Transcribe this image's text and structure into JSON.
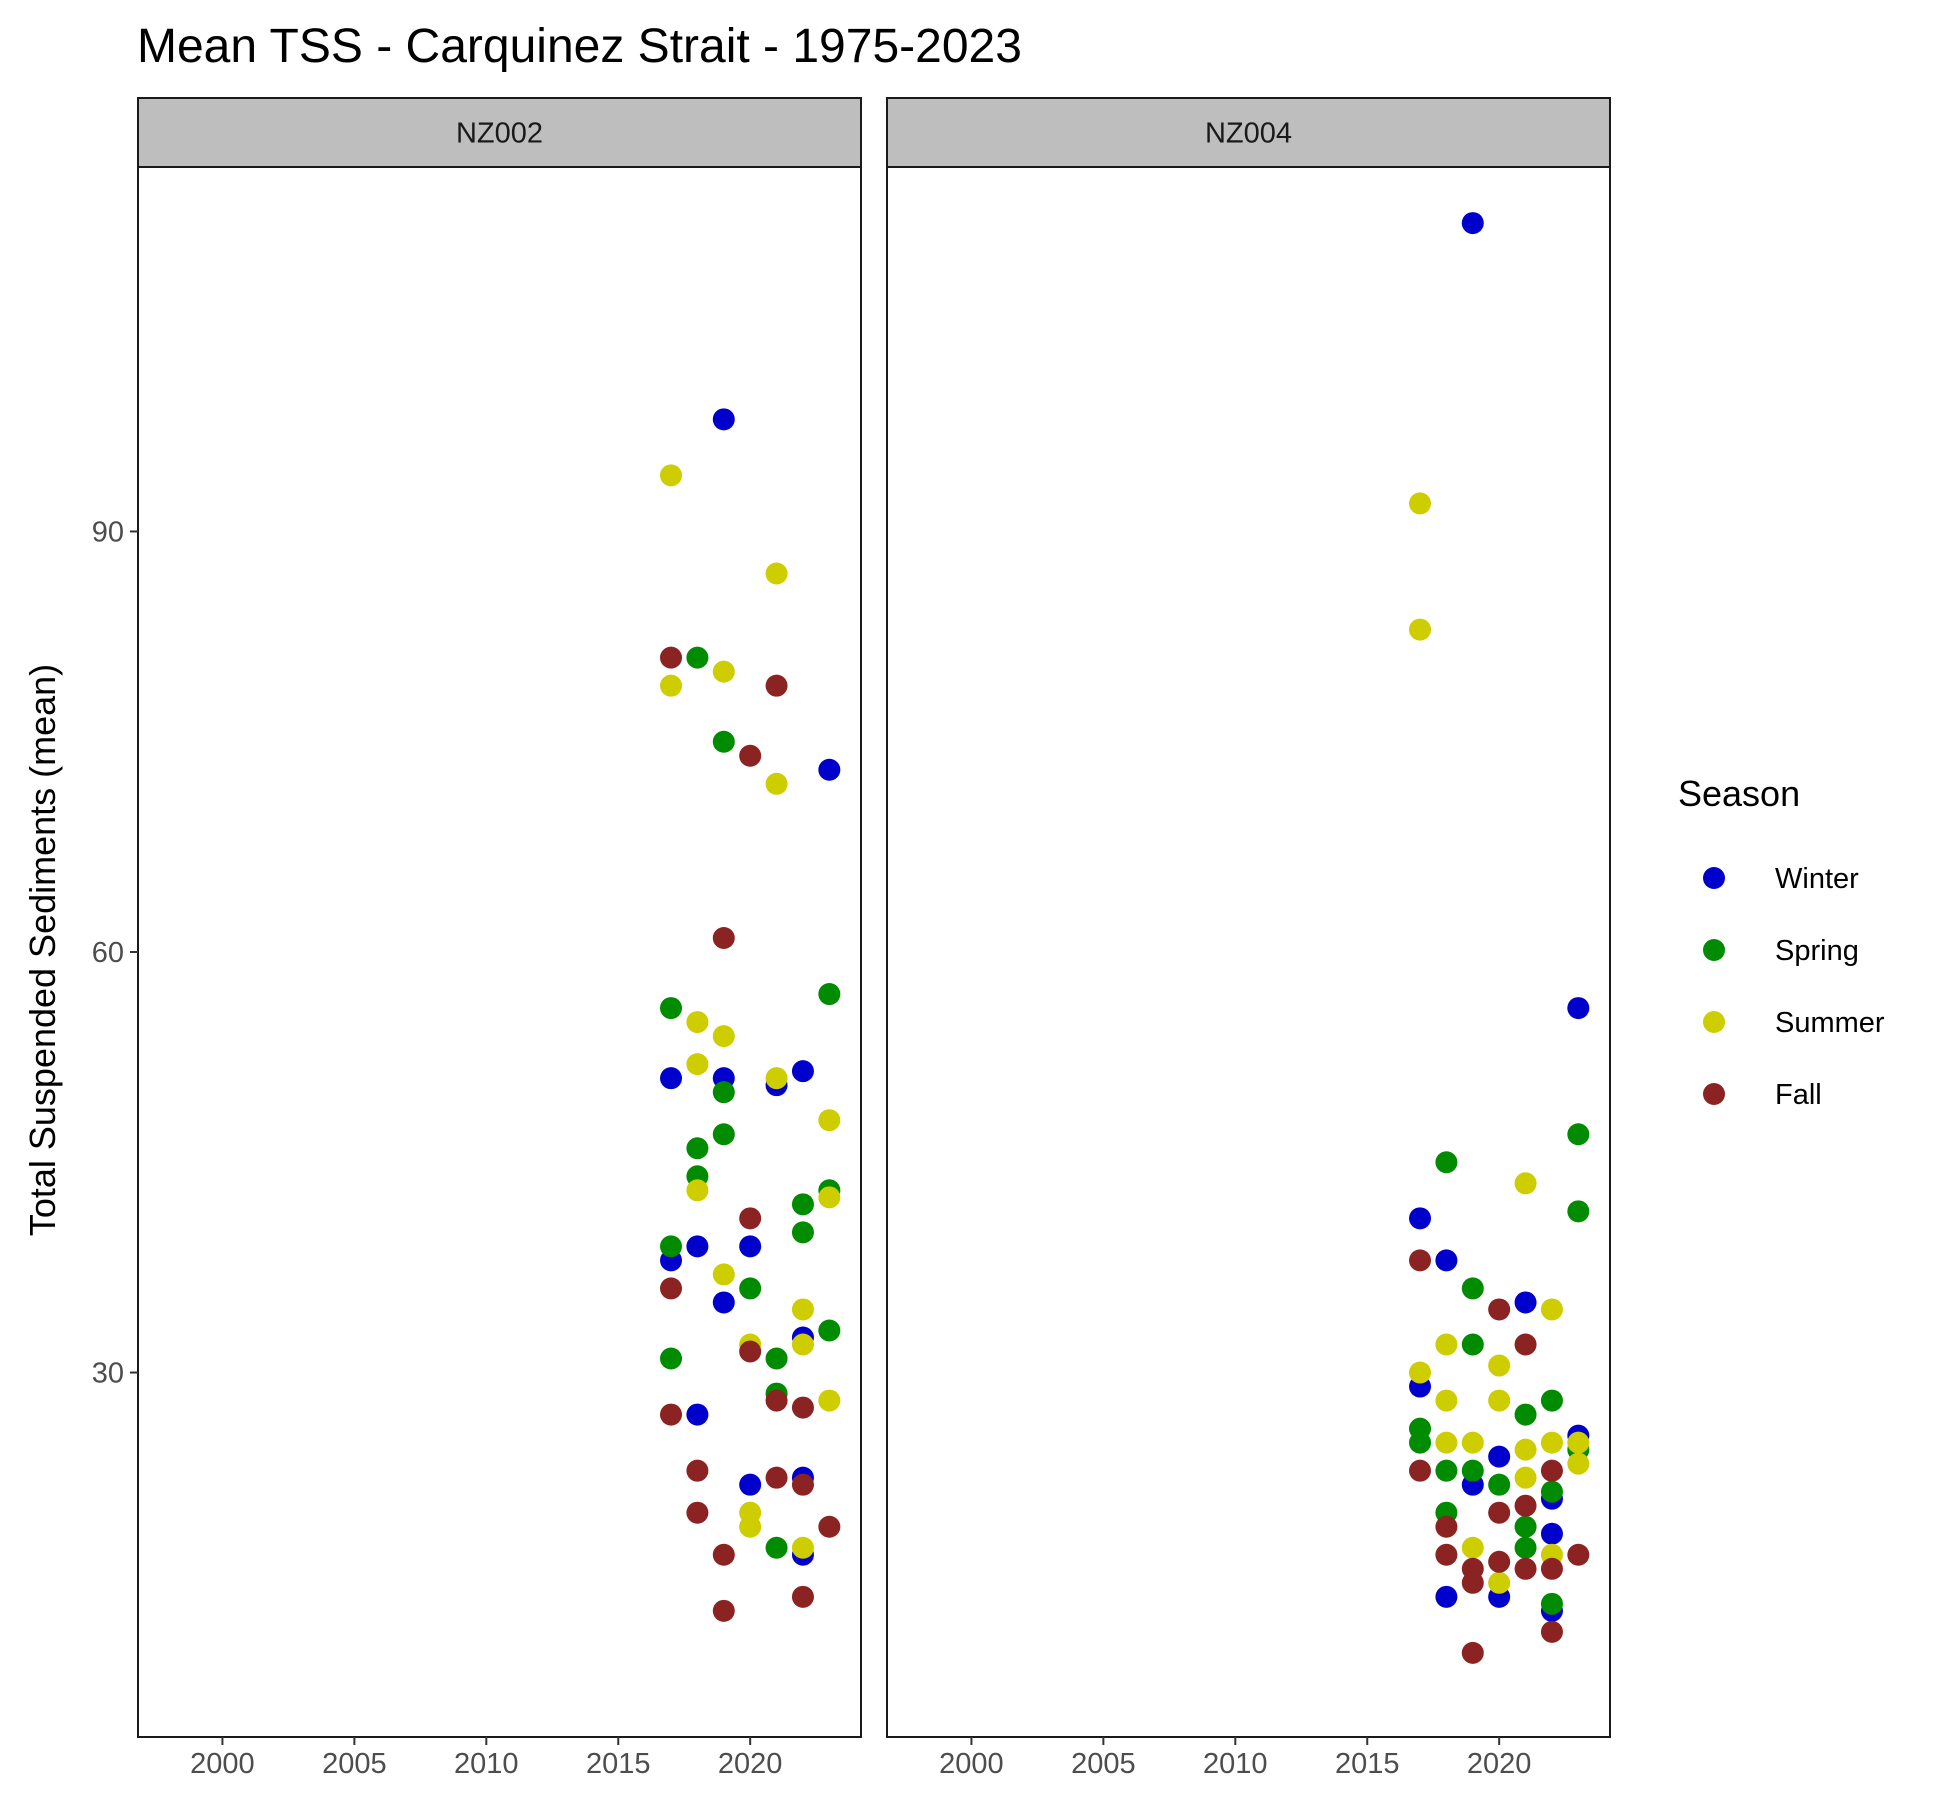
{
  "chart_data": {
    "type": "scatter",
    "title": "Mean TSS - Carquinez Strait - 1975-2023",
    "xlabel": "",
    "ylabel": "Total Suspended Sediments (mean)",
    "xlim": [
      1996.8,
      2024.2
    ],
    "ylim": [
      4,
      116
    ],
    "x_ticks": [
      2000,
      2005,
      2010,
      2015,
      2020
    ],
    "y_ticks": [
      30,
      60,
      90
    ],
    "grid": false,
    "legend": {
      "title": "Season",
      "position": "right",
      "entries": [
        {
          "name": "Winter",
          "color": "#0000CD"
        },
        {
          "name": "Spring",
          "color": "#008B00"
        },
        {
          "name": "Summer",
          "color": "#CDCD00"
        },
        {
          "name": "Fall",
          "color": "#8B2323"
        }
      ]
    },
    "panels": [
      {
        "label": "NZ002",
        "series": [
          {
            "name": "Winter",
            "points": [
              [
                2017,
                51
              ],
              [
                2017,
                38
              ],
              [
                2018,
                39
              ],
              [
                2018,
                27
              ],
              [
                2019,
                98
              ],
              [
                2019,
                51
              ],
              [
                2019,
                35
              ],
              [
                2020,
                39
              ],
              [
                2020,
                22
              ],
              [
                2021,
                50.5
              ],
              [
                2022,
                51.5
              ],
              [
                2022,
                32.5
              ],
              [
                2022,
                22.5
              ],
              [
                2022,
                17
              ],
              [
                2023,
                73
              ]
            ]
          },
          {
            "name": "Spring",
            "points": [
              [
                2017,
                56
              ],
              [
                2017,
                39
              ],
              [
                2017,
                31
              ],
              [
                2018,
                81
              ],
              [
                2018,
                46
              ],
              [
                2018,
                44
              ],
              [
                2019,
                75
              ],
              [
                2019,
                50
              ],
              [
                2019,
                47
              ],
              [
                2020,
                36
              ],
              [
                2021,
                31
              ],
              [
                2021,
                28.5
              ],
              [
                2021,
                17.5
              ],
              [
                2022,
                42
              ],
              [
                2022,
                40
              ],
              [
                2023,
                57
              ],
              [
                2023,
                43
              ],
              [
                2023,
                33
              ]
            ]
          },
          {
            "name": "Summer",
            "points": [
              [
                2017,
                94
              ],
              [
                2017,
                79
              ],
              [
                2018,
                55
              ],
              [
                2018,
                52
              ],
              [
                2018,
                43
              ],
              [
                2019,
                80
              ],
              [
                2019,
                54
              ],
              [
                2019,
                37
              ],
              [
                2020,
                32
              ],
              [
                2020,
                20
              ],
              [
                2020,
                19
              ],
              [
                2021,
                87
              ],
              [
                2021,
                72
              ],
              [
                2021,
                51
              ],
              [
                2022,
                34.5
              ],
              [
                2022,
                32
              ],
              [
                2022,
                17.5
              ],
              [
                2023,
                48
              ],
              [
                2023,
                42.5
              ],
              [
                2023,
                28
              ]
            ]
          },
          {
            "name": "Fall",
            "points": [
              [
                2017,
                81
              ],
              [
                2017,
                36
              ],
              [
                2017,
                27
              ],
              [
                2018,
                23
              ],
              [
                2018,
                20
              ],
              [
                2019,
                61
              ],
              [
                2019,
                17
              ],
              [
                2019,
                13
              ],
              [
                2020,
                74
              ],
              [
                2020,
                41
              ],
              [
                2020,
                31.5
              ],
              [
                2021,
                79
              ],
              [
                2021,
                28
              ],
              [
                2021,
                22.5
              ],
              [
                2022,
                27.5
              ],
              [
                2022,
                22
              ],
              [
                2022,
                14
              ],
              [
                2023,
                19
              ]
            ]
          }
        ]
      },
      {
        "label": "NZ004",
        "series": [
          {
            "name": "Winter",
            "points": [
              [
                2017,
                41
              ],
              [
                2017,
                29
              ],
              [
                2018,
                38
              ],
              [
                2018,
                14
              ],
              [
                2019,
                112
              ],
              [
                2019,
                22
              ],
              [
                2020,
                24
              ],
              [
                2020,
                14
              ],
              [
                2021,
                35
              ],
              [
                2022,
                21
              ],
              [
                2022,
                18.5
              ],
              [
                2022,
                13
              ],
              [
                2023,
                25.5
              ],
              [
                2023,
                56
              ]
            ]
          },
          {
            "name": "Spring",
            "points": [
              [
                2017,
                26
              ],
              [
                2017,
                25
              ],
              [
                2018,
                45
              ],
              [
                2018,
                23
              ],
              [
                2018,
                20
              ],
              [
                2019,
                36
              ],
              [
                2019,
                32
              ],
              [
                2019,
                23
              ],
              [
                2020,
                22
              ],
              [
                2021,
                27
              ],
              [
                2021,
                19
              ],
              [
                2021,
                17.5
              ],
              [
                2022,
                28
              ],
              [
                2022,
                21.5
              ],
              [
                2022,
                13.5
              ],
              [
                2023,
                47
              ],
              [
                2023,
                41.5
              ],
              [
                2023,
                24.5
              ]
            ]
          },
          {
            "name": "Summer",
            "points": [
              [
                2017,
                92
              ],
              [
                2017,
                83
              ],
              [
                2017,
                30
              ],
              [
                2018,
                32
              ],
              [
                2018,
                28
              ],
              [
                2018,
                25
              ],
              [
                2019,
                25
              ],
              [
                2019,
                17.5
              ],
              [
                2020,
                30.5
              ],
              [
                2020,
                28
              ],
              [
                2020,
                15
              ],
              [
                2021,
                43.5
              ],
              [
                2021,
                24.5
              ],
              [
                2021,
                22.5
              ],
              [
                2022,
                34.5
              ],
              [
                2022,
                25
              ],
              [
                2022,
                17
              ],
              [
                2023,
                23.5
              ],
              [
                2023,
                25
              ]
            ]
          },
          {
            "name": "Fall",
            "points": [
              [
                2017,
                38
              ],
              [
                2017,
                23
              ],
              [
                2018,
                19
              ],
              [
                2018,
                17
              ],
              [
                2019,
                16
              ],
              [
                2019,
                15
              ],
              [
                2019,
                10
              ],
              [
                2020,
                34.5
              ],
              [
                2020,
                20
              ],
              [
                2020,
                16.5
              ],
              [
                2021,
                32
              ],
              [
                2021,
                20.5
              ],
              [
                2021,
                16
              ],
              [
                2022,
                23
              ],
              [
                2022,
                16
              ],
              [
                2022,
                11.5
              ],
              [
                2023,
                17
              ]
            ]
          }
        ]
      }
    ]
  }
}
